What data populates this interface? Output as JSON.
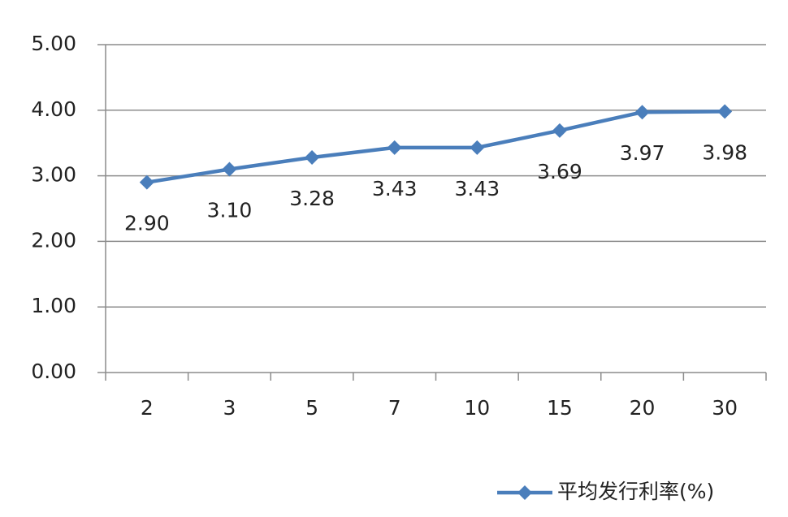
{
  "chart_data": {
    "type": "line",
    "categories": [
      "2",
      "3",
      "5",
      "7",
      "10",
      "15",
      "20",
      "30"
    ],
    "series": [
      {
        "name": "平均发行利率(%)",
        "color": "#4a7ebb",
        "values": [
          2.9,
          3.1,
          3.28,
          3.43,
          3.43,
          3.69,
          3.97,
          3.98
        ],
        "value_labels": [
          "2.90",
          "3.10",
          "3.28",
          "3.43",
          "3.43",
          "3.69",
          "3.97",
          "3.98"
        ]
      }
    ],
    "ylim": [
      0,
      5
    ],
    "yticks": [
      {
        "value": 0,
        "label": "0.00"
      },
      {
        "value": 1,
        "label": "1.00"
      },
      {
        "value": 2,
        "label": "2.00"
      },
      {
        "value": 3,
        "label": "3.00"
      },
      {
        "value": 4,
        "label": "4.00"
      },
      {
        "value": 5,
        "label": "5.00"
      }
    ],
    "grid": true,
    "legend": "bottom-right"
  }
}
